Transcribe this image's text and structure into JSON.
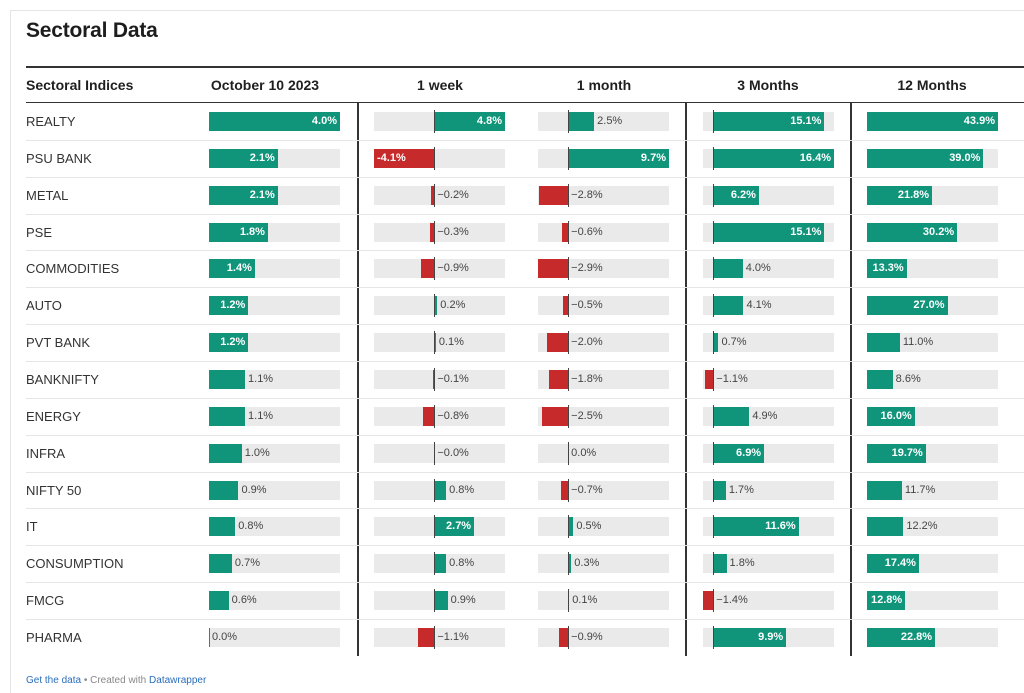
{
  "title": "Sectoral Data",
  "footer": {
    "get_data": "Get the data",
    "separator": " • Created with ",
    "tool": "Datawrapper"
  },
  "colors": {
    "positive": "#10947a",
    "negative": "#c62a2a",
    "track": "#eaeaea"
  },
  "chart_data": {
    "type": "table",
    "row_header": "Sectoral Indices",
    "columns": [
      "October 10 2023",
      "1 week",
      "1 month",
      "3 Months",
      "12 Months"
    ],
    "unit": "%",
    "rows": [
      {
        "name": "REALTY",
        "values": [
          4.0,
          4.8,
          2.5,
          15.1,
          43.9
        ]
      },
      {
        "name": "PSU BANK",
        "values": [
          2.1,
          -4.1,
          9.7,
          16.4,
          39.0
        ]
      },
      {
        "name": "METAL",
        "values": [
          2.1,
          -0.2,
          -2.8,
          6.2,
          21.8
        ]
      },
      {
        "name": "PSE",
        "values": [
          1.8,
          -0.3,
          -0.6,
          15.1,
          30.2
        ]
      },
      {
        "name": "COMMODITIES",
        "values": [
          1.4,
          -0.9,
          -2.9,
          4.0,
          13.3
        ]
      },
      {
        "name": "AUTO",
        "values": [
          1.2,
          0.2,
          -0.5,
          4.1,
          27.0
        ]
      },
      {
        "name": "PVT BANK",
        "values": [
          1.2,
          0.1,
          -2.0,
          0.7,
          11.0
        ]
      },
      {
        "name": "BANKNIFTY",
        "values": [
          1.1,
          -0.1,
          -1.8,
          -1.1,
          8.6
        ]
      },
      {
        "name": "ENERGY",
        "values": [
          1.1,
          -0.8,
          -2.5,
          4.9,
          16.0
        ]
      },
      {
        "name": "INFRA",
        "values": [
          1.0,
          -0.0,
          0.0,
          6.9,
          19.7
        ]
      },
      {
        "name": "NIFTY 50",
        "values": [
          0.9,
          0.8,
          -0.7,
          1.7,
          11.7
        ]
      },
      {
        "name": "IT",
        "values": [
          0.8,
          2.7,
          0.5,
          11.6,
          12.2
        ]
      },
      {
        "name": "CONSUMPTION",
        "values": [
          0.7,
          0.8,
          0.3,
          1.8,
          17.4
        ]
      },
      {
        "name": "FMCG",
        "values": [
          0.6,
          0.9,
          0.1,
          -1.4,
          12.8
        ]
      },
      {
        "name": "PHARMA",
        "values": [
          0.0,
          -1.1,
          -0.9,
          9.9,
          22.8
        ]
      }
    ],
    "labels": [
      [
        "4.0%",
        "4.8%",
        "2.5%",
        "15.1%",
        "43.9%"
      ],
      [
        "2.1%",
        "-4.1%",
        "9.7%",
        "16.4%",
        "39.0%"
      ],
      [
        "2.1%",
        "−0.2%",
        "−2.8%",
        "6.2%",
        "21.8%"
      ],
      [
        "1.8%",
        "−0.3%",
        "−0.6%",
        "15.1%",
        "30.2%"
      ],
      [
        "1.4%",
        "−0.9%",
        "−2.9%",
        "4.0%",
        "13.3%"
      ],
      [
        "1.2%",
        "0.2%",
        "−0.5%",
        "4.1%",
        "27.0%"
      ],
      [
        "1.2%",
        "0.1%",
        "−2.0%",
        "0.7%",
        "11.0%"
      ],
      [
        "1.1%",
        "−0.1%",
        "−1.8%",
        "−1.1%",
        "8.6%"
      ],
      [
        "1.1%",
        "−0.8%",
        "−2.5%",
        "4.9%",
        "16.0%"
      ],
      [
        "1.0%",
        "−0.0%",
        "0.0%",
        "6.9%",
        "19.7%"
      ],
      [
        "0.9%",
        "0.8%",
        "−0.7%",
        "1.7%",
        "11.7%"
      ],
      [
        "0.8%",
        "2.7%",
        "0.5%",
        "11.6%",
        "12.2%"
      ],
      [
        "0.7%",
        "0.8%",
        "0.3%",
        "1.8%",
        "17.4%"
      ],
      [
        "0.6%",
        "0.9%",
        "0.1%",
        "−1.4%",
        "12.8%"
      ],
      [
        "0.0%",
        "−1.1%",
        "−0.9%",
        "9.9%",
        "22.8%"
      ]
    ],
    "column_ranges": [
      [
        0,
        4.0
      ],
      [
        -4.1,
        4.8
      ],
      [
        -2.9,
        9.7
      ],
      [
        -1.4,
        16.4
      ],
      [
        0,
        43.9
      ]
    ]
  }
}
